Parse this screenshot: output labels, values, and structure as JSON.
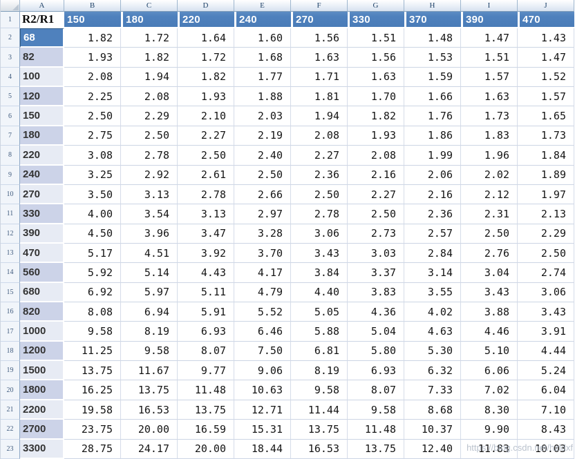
{
  "column_letters": [
    "A",
    "B",
    "C",
    "D",
    "E",
    "F",
    "G",
    "H",
    "I",
    "J"
  ],
  "row_numbers": [
    1,
    2,
    3,
    4,
    5,
    6,
    7,
    8,
    9,
    10,
    11,
    12,
    13,
    14,
    15,
    16,
    17,
    18,
    19,
    20,
    21,
    22,
    23
  ],
  "header_row": {
    "label": "R2/R1",
    "values": [
      "150",
      "180",
      "220",
      "240",
      "270",
      "330",
      "370",
      "390",
      "470"
    ]
  },
  "rows": [
    {
      "row": 2,
      "label": "68",
      "shade": "selected",
      "values": [
        "1.82",
        "1.72",
        "1.64",
        "1.60",
        "1.56",
        "1.51",
        "1.48",
        "1.47",
        "1.43"
      ]
    },
    {
      "row": 3,
      "label": "82",
      "shade": "dark",
      "values": [
        "1.93",
        "1.82",
        "1.72",
        "1.68",
        "1.63",
        "1.56",
        "1.53",
        "1.51",
        "1.47"
      ]
    },
    {
      "row": 4,
      "label": "100",
      "shade": "light",
      "values": [
        "2.08",
        "1.94",
        "1.82",
        "1.77",
        "1.71",
        "1.63",
        "1.59",
        "1.57",
        "1.52"
      ]
    },
    {
      "row": 5,
      "label": "120",
      "shade": "dark",
      "values": [
        "2.25",
        "2.08",
        "1.93",
        "1.88",
        "1.81",
        "1.70",
        "1.66",
        "1.63",
        "1.57"
      ]
    },
    {
      "row": 6,
      "label": "150",
      "shade": "light",
      "values": [
        "2.50",
        "2.29",
        "2.10",
        "2.03",
        "1.94",
        "1.82",
        "1.76",
        "1.73",
        "1.65"
      ]
    },
    {
      "row": 7,
      "label": "180",
      "shade": "dark",
      "values": [
        "2.75",
        "2.50",
        "2.27",
        "2.19",
        "2.08",
        "1.93",
        "1.86",
        "1.83",
        "1.73"
      ]
    },
    {
      "row": 8,
      "label": "220",
      "shade": "light",
      "values": [
        "3.08",
        "2.78",
        "2.50",
        "2.40",
        "2.27",
        "2.08",
        "1.99",
        "1.96",
        "1.84"
      ]
    },
    {
      "row": 9,
      "label": "240",
      "shade": "dark",
      "values": [
        "3.25",
        "2.92",
        "2.61",
        "2.50",
        "2.36",
        "2.16",
        "2.06",
        "2.02",
        "1.89"
      ]
    },
    {
      "row": 10,
      "label": "270",
      "shade": "light",
      "values": [
        "3.50",
        "3.13",
        "2.78",
        "2.66",
        "2.50",
        "2.27",
        "2.16",
        "2.12",
        "1.97"
      ]
    },
    {
      "row": 11,
      "label": "330",
      "shade": "dark",
      "values": [
        "4.00",
        "3.54",
        "3.13",
        "2.97",
        "2.78",
        "2.50",
        "2.36",
        "2.31",
        "2.13"
      ]
    },
    {
      "row": 12,
      "label": "390",
      "shade": "light",
      "values": [
        "4.50",
        "3.96",
        "3.47",
        "3.28",
        "3.06",
        "2.73",
        "2.57",
        "2.50",
        "2.29"
      ]
    },
    {
      "row": 13,
      "label": "470",
      "shade": "light",
      "values": [
        "5.17",
        "4.51",
        "3.92",
        "3.70",
        "3.43",
        "3.03",
        "2.84",
        "2.76",
        "2.50"
      ]
    },
    {
      "row": 14,
      "label": "560",
      "shade": "dark",
      "values": [
        "5.92",
        "5.14",
        "4.43",
        "4.17",
        "3.84",
        "3.37",
        "3.14",
        "3.04",
        "2.74"
      ]
    },
    {
      "row": 15,
      "label": "680",
      "shade": "light",
      "values": [
        "6.92",
        "5.97",
        "5.11",
        "4.79",
        "4.40",
        "3.83",
        "3.55",
        "3.43",
        "3.06"
      ]
    },
    {
      "row": 16,
      "label": "820",
      "shade": "dark",
      "values": [
        "8.08",
        "6.94",
        "5.91",
        "5.52",
        "5.05",
        "4.36",
        "4.02",
        "3.88",
        "3.43"
      ]
    },
    {
      "row": 17,
      "label": "1000",
      "shade": "light",
      "values": [
        "9.58",
        "8.19",
        "6.93",
        "6.46",
        "5.88",
        "5.04",
        "4.63",
        "4.46",
        "3.91"
      ]
    },
    {
      "row": 18,
      "label": "1200",
      "shade": "dark",
      "values": [
        "11.25",
        "9.58",
        "8.07",
        "7.50",
        "6.81",
        "5.80",
        "5.30",
        "5.10",
        "4.44"
      ]
    },
    {
      "row": 19,
      "label": "1500",
      "shade": "light",
      "values": [
        "13.75",
        "11.67",
        "9.77",
        "9.06",
        "8.19",
        "6.93",
        "6.32",
        "6.06",
        "5.24"
      ]
    },
    {
      "row": 20,
      "label": "1800",
      "shade": "dark",
      "values": [
        "16.25",
        "13.75",
        "11.48",
        "10.63",
        "9.58",
        "8.07",
        "7.33",
        "7.02",
        "6.04"
      ]
    },
    {
      "row": 21,
      "label": "2200",
      "shade": "light",
      "values": [
        "19.58",
        "16.53",
        "13.75",
        "12.71",
        "11.44",
        "9.58",
        "8.68",
        "8.30",
        "7.10"
      ]
    },
    {
      "row": 22,
      "label": "2700",
      "shade": "dark",
      "values": [
        "23.75",
        "20.00",
        "16.59",
        "15.31",
        "13.75",
        "11.48",
        "10.37",
        "9.90",
        "8.43"
      ]
    },
    {
      "row": 23,
      "label": "3300",
      "shade": "light",
      "values": [
        "28.75",
        "24.17",
        "20.00",
        "18.44",
        "16.53",
        "13.75",
        "12.40",
        "11.83",
        "10.03"
      ]
    }
  ],
  "watermark": "https://blog.csdn.net/hzldxf",
  "colors": {
    "header_blue": "#4f81bd",
    "band_dark": "#ccd3e8",
    "band_light": "#e7ebf4",
    "gridline": "#d0d7e5"
  }
}
